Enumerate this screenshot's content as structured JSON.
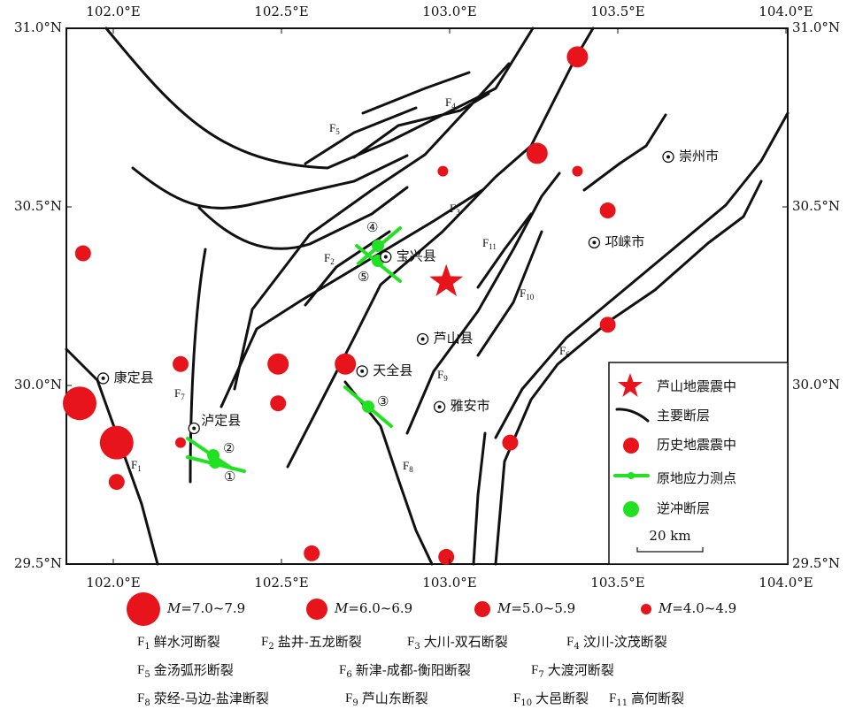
{
  "lon_ticks": [
    {
      "value": 102.0,
      "label": "102.0°E"
    },
    {
      "value": 102.5,
      "label": "102.5°E"
    },
    {
      "value": 103.0,
      "label": "103.0°E"
    },
    {
      "value": 103.5,
      "label": "103.5°E"
    },
    {
      "value": 104.0,
      "label": "104.0°E"
    }
  ],
  "lat_ticks": [
    {
      "value": 31.0,
      "label": "31.0°N"
    },
    {
      "value": 30.5,
      "label": "30.5°N"
    },
    {
      "value": 30.0,
      "label": "30.0°N"
    },
    {
      "value": 29.5,
      "label": "29.5°N"
    }
  ],
  "epicenter": {
    "lon": 102.99,
    "lat": 30.29
  },
  "cities": [
    {
      "name": "崇州市",
      "lon": 103.65,
      "lat": 30.64
    },
    {
      "name": "邛崃市",
      "lon": 103.43,
      "lat": 30.4
    },
    {
      "name": "宝兴县",
      "lon": 102.81,
      "lat": 30.36
    },
    {
      "name": "芦山县",
      "lon": 102.92,
      "lat": 30.13
    },
    {
      "name": "天全县",
      "lon": 102.74,
      "lat": 30.04
    },
    {
      "name": "雅安市",
      "lon": 102.97,
      "lat": 29.94
    },
    {
      "name": "康定县",
      "lon": 101.97,
      "lat": 30.02
    },
    {
      "name": "泸定县",
      "lon": 102.24,
      "lat": 29.88
    }
  ],
  "earthquakes": [
    {
      "lon": 103.38,
      "lat": 30.92,
      "class": 1
    },
    {
      "lon": 103.26,
      "lat": 30.65,
      "class": 1
    },
    {
      "lon": 102.98,
      "lat": 30.6,
      "class": 3
    },
    {
      "lon": 103.38,
      "lat": 30.6,
      "class": 3
    },
    {
      "lon": 103.47,
      "lat": 30.49,
      "class": 2
    },
    {
      "lon": 101.91,
      "lat": 30.37,
      "class": 2
    },
    {
      "lon": 103.47,
      "lat": 30.17,
      "class": 2
    },
    {
      "lon": 102.2,
      "lat": 30.06,
      "class": 2
    },
    {
      "lon": 102.49,
      "lat": 30.06,
      "class": 1
    },
    {
      "lon": 102.69,
      "lat": 30.06,
      "class": 1
    },
    {
      "lon": 102.49,
      "lat": 29.95,
      "class": 2
    },
    {
      "lon": 101.9,
      "lat": 29.95,
      "class": 0
    },
    {
      "lon": 102.01,
      "lat": 29.84,
      "class": 0
    },
    {
      "lon": 102.2,
      "lat": 29.84,
      "class": 3
    },
    {
      "lon": 102.01,
      "lat": 29.73,
      "class": 2
    },
    {
      "lon": 103.18,
      "lat": 29.84,
      "class": 2
    },
    {
      "lon": 102.59,
      "lat": 29.53,
      "class": 2
    },
    {
      "lon": 102.99,
      "lat": 29.52,
      "class": 2
    }
  ],
  "magnitude_classes": [
    {
      "symbol": "M",
      "range": "=7.0~7.9"
    },
    {
      "symbol": "M",
      "range": "=6.0~6.9"
    },
    {
      "symbol": "M",
      "range": "=5.0~5.9"
    },
    {
      "symbol": "M",
      "range": "=4.0~4.9"
    }
  ],
  "stations": [
    "①",
    "②",
    "③",
    "④",
    "⑤"
  ],
  "fault_labels": [
    {
      "letter": "F",
      "sub": "1"
    },
    {
      "letter": "F",
      "sub": "2"
    },
    {
      "letter": "F",
      "sub": "3"
    },
    {
      "letter": "F",
      "sub": "4"
    },
    {
      "letter": "F",
      "sub": "5"
    },
    {
      "letter": "F",
      "sub": "6"
    },
    {
      "letter": "F",
      "sub": "7"
    },
    {
      "letter": "F",
      "sub": "8"
    },
    {
      "letter": "F",
      "sub": "9"
    },
    {
      "letter": "F",
      "sub": "10"
    },
    {
      "letter": "F",
      "sub": "11"
    }
  ],
  "legend": [
    "芦山地震震中",
    "主要断层",
    "历史地震震中",
    "原地应力测点",
    "逆冲断层"
  ],
  "scale_bar": "20 km",
  "fault_list": [
    [
      {
        "letter": "F",
        "sub": "1",
        "name": "鲜水河断裂"
      },
      {
        "letter": "F",
        "sub": "2",
        "name": "盐井-五龙断裂"
      },
      {
        "letter": "F",
        "sub": "3",
        "name": "大川-双石断裂"
      },
      {
        "letter": "F",
        "sub": "4",
        "name": "汶川-汶茂断裂"
      }
    ],
    [
      {
        "letter": "F",
        "sub": "5",
        "name": "金汤弧形断裂"
      },
      {
        "letter": "F",
        "sub": "6",
        "name": "新津-成都-衡阳断裂"
      },
      {
        "letter": "F",
        "sub": "7",
        "name": "大渡河断裂"
      }
    ],
    [
      {
        "letter": "F",
        "sub": "8",
        "name": "荥经-马边-盐津断裂"
      },
      {
        "letter": "F",
        "sub": "9",
        "name": "芦山东断裂"
      },
      {
        "letter": "F",
        "sub": "10",
        "name": "大邑断裂"
      },
      {
        "letter": "F",
        "sub": "11",
        "name": "高何断裂"
      }
    ]
  ]
}
